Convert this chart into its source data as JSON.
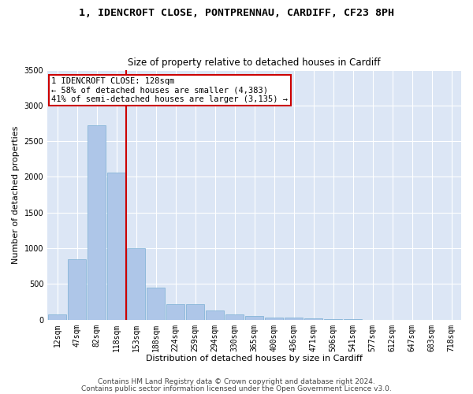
{
  "title1": "1, IDENCROFT CLOSE, PONTPRENNAU, CARDIFF, CF23 8PH",
  "title2": "Size of property relative to detached houses in Cardiff",
  "xlabel": "Distribution of detached houses by size in Cardiff",
  "ylabel": "Number of detached properties",
  "categories": [
    "12sqm",
    "47sqm",
    "82sqm",
    "118sqm",
    "153sqm",
    "188sqm",
    "224sqm",
    "259sqm",
    "294sqm",
    "330sqm",
    "365sqm",
    "400sqm",
    "436sqm",
    "471sqm",
    "506sqm",
    "541sqm",
    "577sqm",
    "612sqm",
    "647sqm",
    "683sqm",
    "718sqm"
  ],
  "values": [
    70,
    850,
    2720,
    2060,
    1000,
    450,
    220,
    220,
    130,
    70,
    55,
    35,
    25,
    15,
    5,
    3,
    2,
    1,
    0,
    0,
    0
  ],
  "bar_color": "#aec6e8",
  "bar_edge_color": "#7aafd4",
  "vline_x": 3.5,
  "vline_color": "#cc0000",
  "annotation_text": "1 IDENCROFT CLOSE: 128sqm\n← 58% of detached houses are smaller (4,383)\n41% of semi-detached houses are larger (3,135) →",
  "annotation_box_color": "#ffffff",
  "annotation_box_edge_color": "#cc0000",
  "ylim": [
    0,
    3500
  ],
  "yticks": [
    0,
    500,
    1000,
    1500,
    2000,
    2500,
    3000,
    3500
  ],
  "background_color": "#dce6f5",
  "grid_color": "#ffffff",
  "footer1": "Contains HM Land Registry data © Crown copyright and database right 2024.",
  "footer2": "Contains public sector information licensed under the Open Government Licence v3.0.",
  "title1_fontsize": 9.5,
  "title2_fontsize": 8.5,
  "xlabel_fontsize": 8,
  "ylabel_fontsize": 8,
  "tick_fontsize": 7,
  "footer_fontsize": 6.5,
  "annot_fontsize": 7.5
}
